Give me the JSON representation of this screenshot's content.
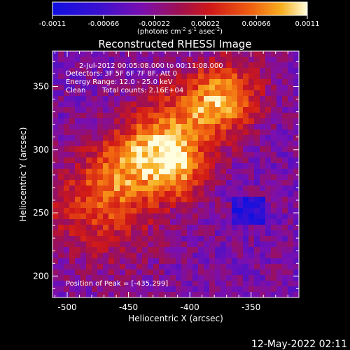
{
  "chart_data": {
    "type": "heatmap",
    "title": "Reconstructed RHESSI Image",
    "xlabel": "Heliocentric X (arcsec)",
    "ylabel": "Heliocentric Y (arcsec)",
    "xlim": [
      -512,
      -311
    ],
    "ylim": [
      183,
      378
    ],
    "x_ticks": [
      "-500",
      "-450",
      "-400",
      "-350"
    ],
    "x_tick_values": [
      -500,
      -450,
      -400,
      -350
    ],
    "y_ticks": [
      "200",
      "250",
      "300",
      "350"
    ],
    "y_tick_values": [
      200,
      250,
      300,
      350
    ],
    "colorbar": {
      "ticks": [
        "-0.0011",
        "-0.00066",
        "-0.00022",
        "0.00022",
        "0.00066",
        "0.0011"
      ],
      "tick_values": [
        -0.0011,
        -0.00066,
        -0.00022,
        0.00022,
        0.00066,
        0.0011
      ],
      "range": [
        -0.0011,
        0.0011
      ],
      "unit_label_main": "(photons cm",
      "unit_sup1": "-2",
      "unit_mid1": " s",
      "unit_sup2": "-1",
      "unit_mid2": " asec",
      "unit_sup3": "-2",
      "unit_end": ")"
    },
    "annotations": {
      "line1": "2-Jul-2012 00:05:08.000 to 00:11:08.000",
      "line2": "Detectors: 3F 5F 6F 7F 8F, Att 0",
      "line3": "Energy Range: 12.0 - 25.0 keV",
      "line4_a": "Clean",
      "line4_b": "Total counts: 2.16E+04",
      "peak": "Position of Peak = [-435,299]"
    },
    "peak": {
      "x": -435,
      "y": 299
    },
    "plot_date": "12-May-2022 02:11",
    "colors": {
      "foreground": "#ffffff",
      "background": "#000000"
    }
  }
}
